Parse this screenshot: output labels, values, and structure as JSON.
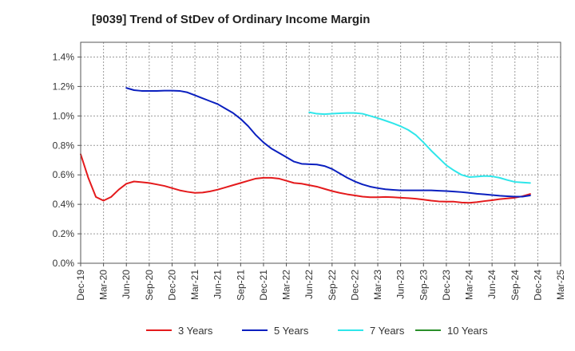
{
  "chart_data": {
    "type": "line",
    "title": "[9039]  Trend of StDev of Ordinary Income Margin",
    "xlabel": "",
    "ylabel": "",
    "x_ticks": [
      "Dec-19",
      "Mar-20",
      "Jun-20",
      "Sep-20",
      "Dec-20",
      "Mar-21",
      "Jun-21",
      "Sep-21",
      "Dec-21",
      "Mar-22",
      "Jun-22",
      "Sep-22",
      "Dec-22",
      "Mar-23",
      "Jun-23",
      "Sep-23",
      "Dec-23",
      "Mar-24",
      "Jun-24",
      "Sep-24",
      "Dec-24",
      "Mar-25"
    ],
    "y_ticks": [
      "0.0%",
      "0.2%",
      "0.4%",
      "0.6%",
      "0.8%",
      "1.0%",
      "1.2%",
      "1.4%"
    ],
    "ylim": [
      0,
      1.5
    ],
    "grid": true,
    "legend_position": "bottom",
    "series": [
      {
        "name": "3 Years",
        "color": "#e41a1c",
        "points": [
          [
            0,
            0.74
          ],
          [
            1,
            0.58
          ],
          [
            2,
            0.45
          ],
          [
            3,
            0.425
          ],
          [
            4,
            0.45
          ],
          [
            5,
            0.5
          ],
          [
            6,
            0.54
          ],
          [
            7,
            0.555
          ],
          [
            8,
            0.55
          ],
          [
            9,
            0.545
          ],
          [
            10,
            0.535
          ],
          [
            11,
            0.525
          ],
          [
            12,
            0.51
          ],
          [
            13,
            0.495
          ],
          [
            14,
            0.485
          ],
          [
            15,
            0.478
          ],
          [
            16,
            0.48
          ],
          [
            17,
            0.488
          ],
          [
            18,
            0.5
          ],
          [
            19,
            0.515
          ],
          [
            20,
            0.53
          ],
          [
            21,
            0.545
          ],
          [
            22,
            0.56
          ],
          [
            23,
            0.575
          ],
          [
            24,
            0.58
          ],
          [
            25,
            0.58
          ],
          [
            26,
            0.575
          ],
          [
            27,
            0.56
          ],
          [
            28,
            0.545
          ],
          [
            29,
            0.54
          ],
          [
            30,
            0.53
          ],
          [
            31,
            0.52
          ],
          [
            32,
            0.505
          ],
          [
            33,
            0.49
          ],
          [
            34,
            0.478
          ],
          [
            35,
            0.468
          ],
          [
            36,
            0.46
          ],
          [
            37,
            0.452
          ],
          [
            38,
            0.448
          ],
          [
            39,
            0.448
          ],
          [
            40,
            0.45
          ],
          [
            41,
            0.448
          ],
          [
            42,
            0.445
          ],
          [
            43,
            0.442
          ],
          [
            44,
            0.438
          ],
          [
            45,
            0.432
          ],
          [
            46,
            0.425
          ],
          [
            47,
            0.42
          ],
          [
            48,
            0.418
          ],
          [
            49,
            0.418
          ],
          [
            50,
            0.412
          ],
          [
            51,
            0.41
          ],
          [
            52,
            0.415
          ],
          [
            53,
            0.422
          ],
          [
            54,
            0.428
          ],
          [
            55,
            0.435
          ],
          [
            56,
            0.44
          ],
          [
            57,
            0.445
          ],
          [
            58,
            0.455
          ],
          [
            59,
            0.47
          ]
        ]
      },
      {
        "name": "5 Years",
        "color": "#0a1fbf",
        "points": [
          [
            6,
            1.19
          ],
          [
            7,
            1.175
          ],
          [
            8,
            1.17
          ],
          [
            9,
            1.17
          ],
          [
            10,
            1.17
          ],
          [
            11,
            1.172
          ],
          [
            12,
            1.172
          ],
          [
            13,
            1.17
          ],
          [
            14,
            1.16
          ],
          [
            15,
            1.14
          ],
          [
            16,
            1.12
          ],
          [
            17,
            1.1
          ],
          [
            18,
            1.08
          ],
          [
            19,
            1.05
          ],
          [
            20,
            1.02
          ],
          [
            21,
            0.98
          ],
          [
            22,
            0.93
          ],
          [
            23,
            0.87
          ],
          [
            24,
            0.82
          ],
          [
            25,
            0.78
          ],
          [
            26,
            0.75
          ],
          [
            27,
            0.72
          ],
          [
            28,
            0.69
          ],
          [
            29,
            0.675
          ],
          [
            30,
            0.672
          ],
          [
            31,
            0.67
          ],
          [
            32,
            0.66
          ],
          [
            33,
            0.64
          ],
          [
            34,
            0.61
          ],
          [
            35,
            0.58
          ],
          [
            36,
            0.555
          ],
          [
            37,
            0.535
          ],
          [
            38,
            0.52
          ],
          [
            39,
            0.51
          ],
          [
            40,
            0.502
          ],
          [
            41,
            0.498
          ],
          [
            42,
            0.495
          ],
          [
            43,
            0.495
          ],
          [
            44,
            0.495
          ],
          [
            45,
            0.495
          ],
          [
            46,
            0.495
          ],
          [
            47,
            0.492
          ],
          [
            48,
            0.49
          ],
          [
            49,
            0.487
          ],
          [
            50,
            0.483
          ],
          [
            51,
            0.478
          ],
          [
            52,
            0.472
          ],
          [
            53,
            0.468
          ],
          [
            54,
            0.463
          ],
          [
            55,
            0.458
          ],
          [
            56,
            0.455
          ],
          [
            57,
            0.452
          ],
          [
            58,
            0.452
          ],
          [
            59,
            0.46
          ]
        ]
      },
      {
        "name": "7 Years",
        "color": "#2ee6ea",
        "points": [
          [
            30,
            1.025
          ],
          [
            31,
            1.015
          ],
          [
            32,
            1.012
          ],
          [
            33,
            1.015
          ],
          [
            34,
            1.018
          ],
          [
            35,
            1.02
          ],
          [
            36,
            1.02
          ],
          [
            37,
            1.015
          ],
          [
            38,
            1.0
          ],
          [
            39,
            0.985
          ],
          [
            40,
            0.968
          ],
          [
            41,
            0.95
          ],
          [
            42,
            0.93
          ],
          [
            43,
            0.905
          ],
          [
            44,
            0.87
          ],
          [
            45,
            0.82
          ],
          [
            46,
            0.765
          ],
          [
            47,
            0.715
          ],
          [
            48,
            0.665
          ],
          [
            49,
            0.63
          ],
          [
            50,
            0.6
          ],
          [
            51,
            0.585
          ],
          [
            52,
            0.588
          ],
          [
            53,
            0.592
          ],
          [
            54,
            0.59
          ],
          [
            55,
            0.58
          ],
          [
            56,
            0.565
          ],
          [
            57,
            0.552
          ],
          [
            58,
            0.548
          ],
          [
            59,
            0.545
          ]
        ]
      },
      {
        "name": "10 Years",
        "color": "#2a8f2a",
        "points": []
      }
    ]
  }
}
